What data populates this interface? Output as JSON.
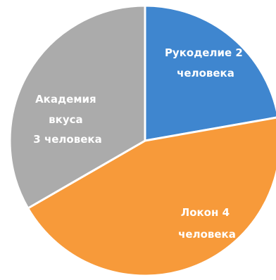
{
  "chart_data": {
    "type": "pie",
    "title": "",
    "slices": [
      {
        "line1": "Рукоделие 2",
        "line2": "человека",
        "value": 2,
        "color": "#3f86cf"
      },
      {
        "line1": "Локон 4",
        "line2": "человека",
        "value": 4,
        "color": "#f79a3a"
      },
      {
        "line1": "Академия",
        "line2": "вкуса",
        "line3": "3 человека",
        "value": 3,
        "color": "#ababab"
      }
    ]
  }
}
